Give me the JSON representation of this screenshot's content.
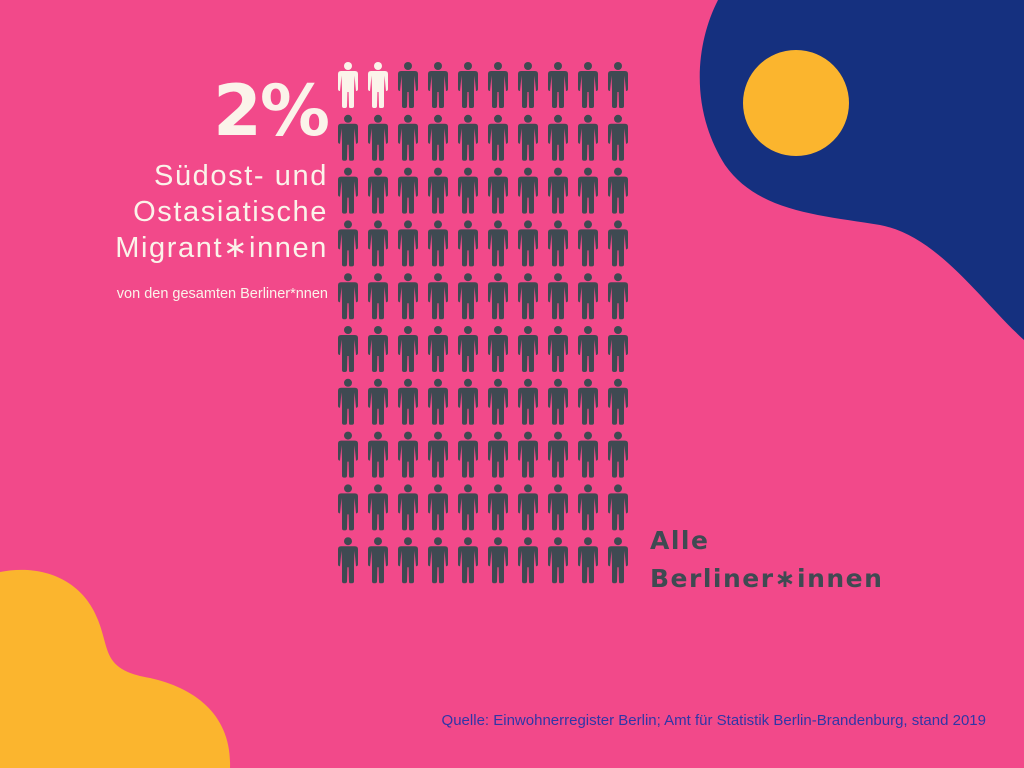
{
  "colors": {
    "background": "#f2498a",
    "blob_blue": "#15307f",
    "blob_yellow": "#fbb52e",
    "highlight_person": "#fbf3ea",
    "base_person": "#3f4a52",
    "source_text": "#3036a6"
  },
  "headline": {
    "percent": "2%",
    "subtitle_lines": [
      "Südost- und",
      "Ostasiatische",
      "Migrant∗innen"
    ],
    "note": "von den gesamten Berliner*nnen"
  },
  "all_label_lines": [
    "Alle",
    "Berliner∗innen"
  ],
  "source": "Quelle: Einwohnerregister  Berlin; Amt für Statistik Berlin-Brandenburg, stand 2019",
  "chart_data": {
    "type": "pictogram",
    "total_icons": 100,
    "highlighted_icons": 2,
    "value_percent": 2,
    "rows": 10,
    "columns": 10,
    "highlight_label": "Südost- und Ostasiatische Migrant∗innen",
    "base_label": "Alle Berliner∗innen"
  }
}
